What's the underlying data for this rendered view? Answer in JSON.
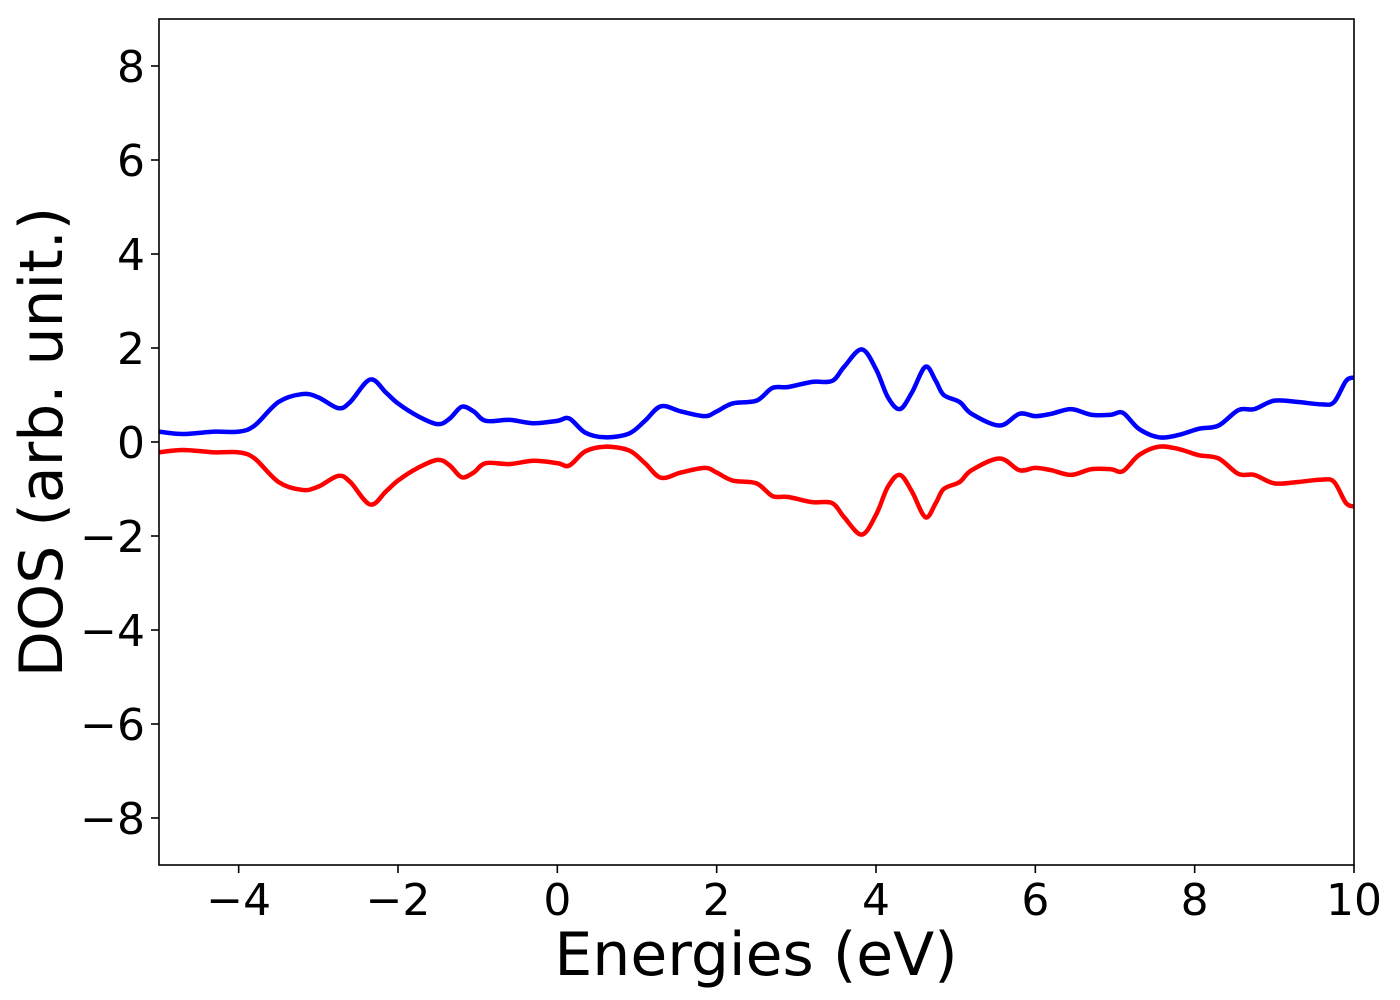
{
  "chart_data": {
    "type": "line",
    "title": "",
    "xlabel": "Energies (eV)",
    "ylabel": "DOS (arb. unit.)",
    "xlim": [
      -5,
      10
    ],
    "ylim": [
      -9,
      9
    ],
    "xticks": [
      -4,
      -2,
      0,
      2,
      4,
      6,
      8,
      10
    ],
    "xtick_labels": [
      "−4",
      "−2",
      "0",
      "2",
      "4",
      "6",
      "8",
      "10"
    ],
    "yticks": [
      8,
      6,
      4,
      2,
      0,
      -2,
      -4,
      -6,
      -8
    ],
    "ytick_labels": [
      "8",
      "6",
      "4",
      "2",
      "0",
      "−2",
      "−4",
      "−6",
      "−8"
    ],
    "grid": false,
    "series": [
      {
        "color": "#0000ff",
        "points": [
          [
            -5.0,
            0.22
          ],
          [
            -4.7,
            0.17
          ],
          [
            -4.3,
            0.22
          ],
          [
            -4.0,
            0.22
          ],
          [
            -3.8,
            0.35
          ],
          [
            -3.5,
            0.85
          ],
          [
            -3.2,
            1.02
          ],
          [
            -3.0,
            0.95
          ],
          [
            -2.75,
            0.72
          ],
          [
            -2.6,
            0.85
          ],
          [
            -2.35,
            1.33
          ],
          [
            -2.15,
            1.05
          ],
          [
            -2.0,
            0.82
          ],
          [
            -1.75,
            0.55
          ],
          [
            -1.5,
            0.38
          ],
          [
            -1.35,
            0.5
          ],
          [
            -1.2,
            0.75
          ],
          [
            -1.05,
            0.65
          ],
          [
            -0.9,
            0.45
          ],
          [
            -0.6,
            0.47
          ],
          [
            -0.3,
            0.4
          ],
          [
            0.0,
            0.45
          ],
          [
            0.15,
            0.5
          ],
          [
            0.35,
            0.2
          ],
          [
            0.6,
            0.1
          ],
          [
            0.9,
            0.18
          ],
          [
            1.1,
            0.45
          ],
          [
            1.3,
            0.76
          ],
          [
            1.55,
            0.65
          ],
          [
            1.85,
            0.55
          ],
          [
            2.0,
            0.65
          ],
          [
            2.2,
            0.82
          ],
          [
            2.5,
            0.88
          ],
          [
            2.7,
            1.15
          ],
          [
            2.9,
            1.17
          ],
          [
            3.2,
            1.28
          ],
          [
            3.45,
            1.3
          ],
          [
            3.6,
            1.6
          ],
          [
            3.82,
            1.97
          ],
          [
            4.0,
            1.55
          ],
          [
            4.15,
            0.95
          ],
          [
            4.3,
            0.7
          ],
          [
            4.45,
            1.05
          ],
          [
            4.62,
            1.6
          ],
          [
            4.75,
            1.3
          ],
          [
            4.85,
            1.0
          ],
          [
            5.05,
            0.85
          ],
          [
            5.2,
            0.6
          ],
          [
            5.55,
            0.35
          ],
          [
            5.8,
            0.6
          ],
          [
            6.0,
            0.55
          ],
          [
            6.2,
            0.6
          ],
          [
            6.45,
            0.7
          ],
          [
            6.7,
            0.58
          ],
          [
            6.95,
            0.58
          ],
          [
            7.1,
            0.62
          ],
          [
            7.3,
            0.28
          ],
          [
            7.55,
            0.1
          ],
          [
            7.8,
            0.15
          ],
          [
            8.05,
            0.28
          ],
          [
            8.3,
            0.35
          ],
          [
            8.55,
            0.68
          ],
          [
            8.75,
            0.7
          ],
          [
            9.0,
            0.88
          ],
          [
            9.3,
            0.85
          ],
          [
            9.6,
            0.8
          ],
          [
            9.75,
            0.85
          ],
          [
            9.9,
            1.3
          ],
          [
            10.0,
            1.37
          ]
        ]
      },
      {
        "color": "#ff0000",
        "points": [
          [
            -5.0,
            -0.22
          ],
          [
            -4.7,
            -0.17
          ],
          [
            -4.3,
            -0.22
          ],
          [
            -4.0,
            -0.22
          ],
          [
            -3.8,
            -0.35
          ],
          [
            -3.5,
            -0.85
          ],
          [
            -3.2,
            -1.02
          ],
          [
            -3.0,
            -0.95
          ],
          [
            -2.75,
            -0.72
          ],
          [
            -2.6,
            -0.85
          ],
          [
            -2.35,
            -1.33
          ],
          [
            -2.15,
            -1.05
          ],
          [
            -2.0,
            -0.82
          ],
          [
            -1.75,
            -0.55
          ],
          [
            -1.5,
            -0.38
          ],
          [
            -1.35,
            -0.5
          ],
          [
            -1.2,
            -0.75
          ],
          [
            -1.05,
            -0.65
          ],
          [
            -0.9,
            -0.45
          ],
          [
            -0.6,
            -0.47
          ],
          [
            -0.3,
            -0.4
          ],
          [
            0.0,
            -0.45
          ],
          [
            0.15,
            -0.5
          ],
          [
            0.35,
            -0.2
          ],
          [
            0.6,
            -0.1
          ],
          [
            0.9,
            -0.18
          ],
          [
            1.1,
            -0.45
          ],
          [
            1.3,
            -0.76
          ],
          [
            1.55,
            -0.65
          ],
          [
            1.85,
            -0.55
          ],
          [
            2.0,
            -0.65
          ],
          [
            2.2,
            -0.82
          ],
          [
            2.5,
            -0.88
          ],
          [
            2.7,
            -1.15
          ],
          [
            2.9,
            -1.17
          ],
          [
            3.2,
            -1.28
          ],
          [
            3.45,
            -1.3
          ],
          [
            3.6,
            -1.6
          ],
          [
            3.82,
            -1.97
          ],
          [
            4.0,
            -1.55
          ],
          [
            4.15,
            -0.95
          ],
          [
            4.3,
            -0.7
          ],
          [
            4.45,
            -1.05
          ],
          [
            4.62,
            -1.6
          ],
          [
            4.75,
            -1.3
          ],
          [
            4.85,
            -1.0
          ],
          [
            5.05,
            -0.85
          ],
          [
            5.2,
            -0.6
          ],
          [
            5.55,
            -0.35
          ],
          [
            5.8,
            -0.6
          ],
          [
            6.0,
            -0.55
          ],
          [
            6.2,
            -0.6
          ],
          [
            6.45,
            -0.7
          ],
          [
            6.7,
            -0.58
          ],
          [
            6.95,
            -0.58
          ],
          [
            7.1,
            -0.62
          ],
          [
            7.3,
            -0.28
          ],
          [
            7.55,
            -0.1
          ],
          [
            7.8,
            -0.15
          ],
          [
            8.05,
            -0.28
          ],
          [
            8.3,
            -0.35
          ],
          [
            8.55,
            -0.68
          ],
          [
            8.75,
            -0.7
          ],
          [
            9.0,
            -0.88
          ],
          [
            9.3,
            -0.85
          ],
          [
            9.6,
            -0.8
          ],
          [
            9.75,
            -0.85
          ],
          [
            9.9,
            -1.3
          ],
          [
            10.0,
            -1.37
          ]
        ]
      }
    ]
  }
}
